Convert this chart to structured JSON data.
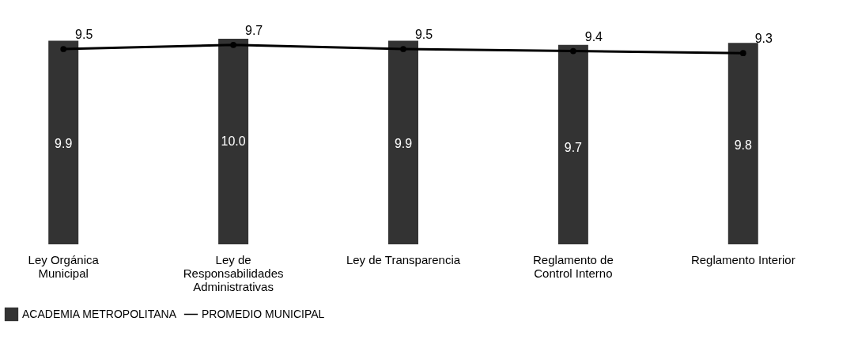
{
  "chart_data": {
    "type": "bar",
    "categories": [
      "Ley Orgánica Municipal",
      "Ley de Responsabilidades Administrativas",
      "Ley de Transparencia",
      "Reglamento de Control Interno",
      "Reglamento Interior"
    ],
    "series": [
      {
        "name": "ACADEMIA METROPOLITANA",
        "color": "#333333",
        "values": [
          9.9,
          10.0,
          9.9,
          9.7,
          9.8
        ],
        "value_labels": [
          "9.9",
          "10.0",
          "9.9",
          "9.7",
          "9.8"
        ]
      },
      {
        "name": "PROMEDIO MUNICIPAL",
        "color": "#000000",
        "type": "line",
        "marker": "circle",
        "values": [
          9.5,
          9.7,
          9.5,
          9.4,
          9.3
        ]
      }
    ],
    "ylim": [
      0,
      10
    ],
    "data_labels": true,
    "legend": "bottom",
    "grid": false
  }
}
